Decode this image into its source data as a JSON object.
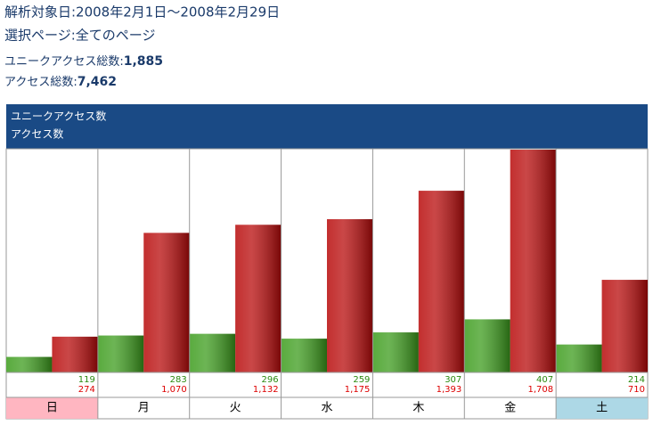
{
  "header": {
    "period": "解析対象日:2008年2月1日～2008年2月29日",
    "page": "選択ページ:全てのページ",
    "unique_label": "ユニークアクセス総数:",
    "unique_total": "1,885",
    "access_label": "アクセス総数:",
    "access_total": "7,462"
  },
  "chart_data": {
    "type": "bar",
    "categories": [
      "日",
      "月",
      "火",
      "水",
      "木",
      "金",
      "土"
    ],
    "series": [
      {
        "name": "ユニークアクセス数",
        "color": "#3c9c1c",
        "values": [
          119,
          283,
          296,
          259,
          307,
          407,
          214
        ]
      },
      {
        "name": "アクセス数",
        "color": "#b80a0a",
        "values": [
          274,
          1070,
          1132,
          1175,
          1393,
          1708,
          710
        ],
        "value_labels": [
          "274",
          "1,070",
          "1,132",
          "1,175",
          "1,393",
          "1,708",
          "710"
        ]
      }
    ]
  }
}
